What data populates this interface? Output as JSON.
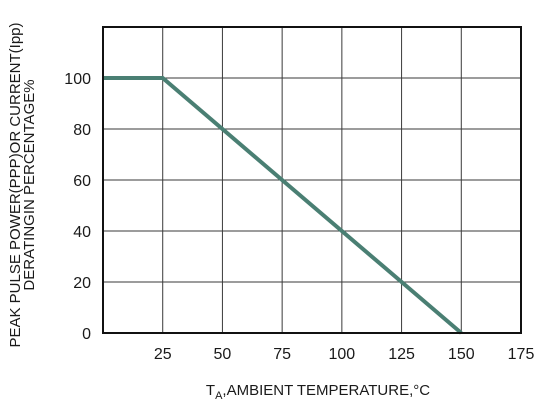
{
  "chart_data": {
    "type": "line",
    "ylabel_lines": [
      "PEAK PULSE POWER(PPP)OR CURRENT(Ipp)",
      "DERATINGIN PERCENTAGE%"
    ],
    "xlabel": {
      "prefix": "T",
      "subscript": "A",
      "rest": ",AMBIENT TEMPERATURE,°C"
    },
    "xlim": [
      0,
      175
    ],
    "ylim": [
      0,
      120
    ],
    "x_ticks": [
      25,
      50,
      75,
      100,
      125,
      150,
      175
    ],
    "y_ticks": [
      0,
      20,
      40,
      60,
      80,
      100
    ],
    "grid": true,
    "series": [
      {
        "color": "#4a7f73",
        "points": [
          {
            "x": 0,
            "y": 100
          },
          {
            "x": 25,
            "y": 100
          },
          {
            "x": 150,
            "y": 0
          }
        ]
      }
    ]
  }
}
